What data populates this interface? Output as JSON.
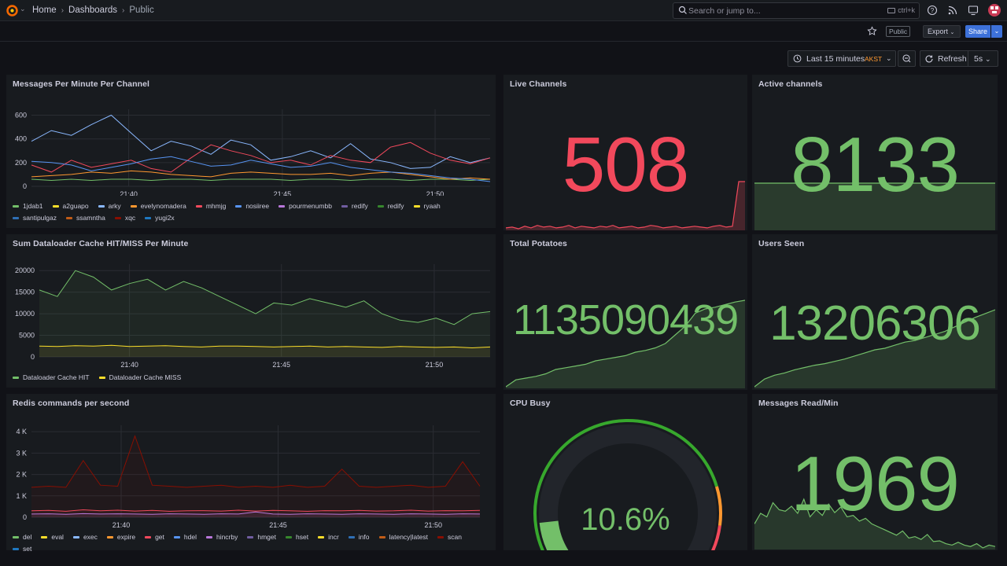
{
  "topbar": {
    "breadcrumbs": [
      "Home",
      "Dashboards",
      "Public"
    ],
    "search_placeholder": "Search or jump to...",
    "search_shortcut": "ctrl+k"
  },
  "toolbar": {
    "public_label": "Public",
    "export_label": "Export",
    "share_label": "Share",
    "time_range": "Last 15 minutes",
    "timezone": "AKST",
    "refresh_label": "Refresh",
    "refresh_interval": "5s"
  },
  "colors": {
    "green": "#73bf69",
    "red": "#f2495c",
    "yellow": "#fade2a",
    "orange": "#ff9830",
    "blue": "#5794f2",
    "panel_bg": "#181b1f"
  },
  "panels": {
    "messages_per_minute": {
      "title": "Messages Per Minute Per Channel",
      "legend": [
        {
          "name": "1jdab1",
          "color": "#73bf69"
        },
        {
          "name": "a2guapo",
          "color": "#fade2a"
        },
        {
          "name": "arky",
          "color": "#8ab8ff"
        },
        {
          "name": "evelynomadera",
          "color": "#ff9830"
        },
        {
          "name": "mhmjg",
          "color": "#f2495c"
        },
        {
          "name": "nosiiree",
          "color": "#5794f2"
        },
        {
          "name": "pourmenumbb",
          "color": "#b877d9"
        },
        {
          "name": "redify",
          "color": "#705da0"
        },
        {
          "name": "redify",
          "color": "#37872d"
        },
        {
          "name": "ryaah",
          "color": "#fade2a"
        },
        {
          "name": "santipulgaz",
          "color": "#2f6fb5"
        },
        {
          "name": "ssamntha",
          "color": "#c15c17"
        },
        {
          "name": "xqc",
          "color": "#890f02"
        },
        {
          "name": "yugi2x",
          "color": "#1f78c1"
        }
      ]
    },
    "dataloader": {
      "title": "Sum Dataloader Cache HIT/MISS Per Minute",
      "legend": [
        {
          "name": "Dataloader Cache HIT",
          "color": "#73bf69"
        },
        {
          "name": "Dataloader Cache MISS",
          "color": "#fade2a"
        }
      ]
    },
    "redis": {
      "title": "Redis commands per second",
      "legend": [
        {
          "name": "del",
          "color": "#73bf69"
        },
        {
          "name": "eval",
          "color": "#fade2a"
        },
        {
          "name": "exec",
          "color": "#8ab8ff"
        },
        {
          "name": "expire",
          "color": "#ff9830"
        },
        {
          "name": "get",
          "color": "#f2495c"
        },
        {
          "name": "hdel",
          "color": "#5794f2"
        },
        {
          "name": "hincrby",
          "color": "#b877d9"
        },
        {
          "name": "hmget",
          "color": "#705da0"
        },
        {
          "name": "hset",
          "color": "#37872d"
        },
        {
          "name": "incr",
          "color": "#fade2a"
        },
        {
          "name": "info",
          "color": "#2f6fb5"
        },
        {
          "name": "latency|latest",
          "color": "#c15c17"
        },
        {
          "name": "scan",
          "color": "#890f02"
        },
        {
          "name": "set",
          "color": "#1f78c1"
        }
      ]
    },
    "live_channels": {
      "title": "Live Channels",
      "value": "508"
    },
    "active_channels": {
      "title": "Active channels",
      "value": "8133"
    },
    "total_potatoes": {
      "title": "Total Potatoes",
      "value": "1135090439"
    },
    "users_seen": {
      "title": "Users Seen",
      "value": "13206306"
    },
    "cpu_busy": {
      "title": "CPU Busy",
      "value": "10.6%",
      "percent": 10.6
    },
    "messages_read": {
      "title": "Messages Read/Min",
      "value": "1969"
    }
  },
  "chart_data": [
    {
      "type": "line",
      "title": "Messages Per Minute Per Channel",
      "x_ticks": [
        "21:40",
        "21:45",
        "21:50"
      ],
      "y_ticks": [
        "0",
        "200",
        "400",
        "600"
      ],
      "ylim": [
        0,
        650
      ],
      "series": [
        {
          "name": "1jdab1",
          "values": [
            60,
            50,
            60,
            50,
            60,
            60,
            50,
            60,
            60,
            50,
            60,
            60,
            60,
            50,
            60,
            60,
            50,
            60,
            60,
            50,
            60,
            60,
            50,
            60
          ]
        },
        {
          "name": "arky",
          "values": [
            380,
            470,
            430,
            520,
            600,
            450,
            300,
            380,
            340,
            270,
            390,
            350,
            220,
            250,
            300,
            240,
            360,
            230,
            200,
            150,
            160,
            250,
            200,
            240
          ]
        },
        {
          "name": "mhmjg",
          "values": [
            180,
            120,
            220,
            160,
            190,
            220,
            150,
            120,
            240,
            350,
            300,
            260,
            200,
            220,
            180,
            260,
            220,
            200,
            330,
            370,
            280,
            220,
            190,
            240
          ]
        },
        {
          "name": "evelynomadera",
          "values": [
            80,
            90,
            100,
            120,
            110,
            130,
            120,
            100,
            90,
            80,
            110,
            120,
            110,
            100,
            100,
            110,
            90,
            110,
            120,
            100,
            80,
            60,
            70,
            60
          ]
        },
        {
          "name": "nosiiree",
          "values": [
            210,
            200,
            180,
            130,
            160,
            190,
            230,
            250,
            210,
            170,
            180,
            220,
            190,
            160,
            170,
            200,
            160,
            140,
            120,
            110,
            90,
            70,
            60,
            40
          ]
        }
      ]
    },
    {
      "type": "area",
      "title": "Sum Dataloader Cache HIT/MISS Per Minute",
      "x_ticks": [
        "21:40",
        "21:45",
        "21:50"
      ],
      "y_ticks": [
        "0",
        "5000",
        "10000",
        "15000",
        "20000"
      ],
      "ylim": [
        0,
        21500
      ],
      "series": [
        {
          "name": "Dataloader Cache HIT",
          "values": [
            15500,
            14000,
            20000,
            18500,
            15500,
            17000,
            18000,
            15500,
            17500,
            16000,
            14000,
            12000,
            10000,
            12500,
            12000,
            13500,
            12500,
            11500,
            13000,
            10000,
            8500,
            8000,
            9000,
            7500,
            10000,
            10500
          ]
        },
        {
          "name": "Dataloader Cache MISS",
          "values": [
            2500,
            2400,
            2600,
            2500,
            2700,
            2400,
            2500,
            2600,
            2400,
            2300,
            2500,
            2500,
            2400,
            2300,
            2400,
            2500,
            2300,
            2400,
            2300,
            2200,
            2400,
            2300,
            2200,
            2300,
            2100,
            2300
          ]
        }
      ]
    },
    {
      "type": "area",
      "title": "Redis commands per second",
      "x_ticks": [
        "21:40",
        "21:45",
        "21:50"
      ],
      "y_ticks": [
        "0",
        "1 K",
        "2 K",
        "3 K",
        "4 K"
      ],
      "ylim": [
        0,
        4300
      ],
      "series": [
        {
          "name": "scan",
          "values": [
            1400,
            1450,
            1400,
            2650,
            1500,
            1450,
            3800,
            1500,
            1450,
            1400,
            1450,
            1500,
            1400,
            1450,
            1400,
            1500,
            1400,
            1450,
            2250,
            1450,
            1400,
            1450,
            1500,
            1400,
            1450,
            2600,
            1450
          ]
        },
        {
          "name": "get",
          "values": [
            300,
            320,
            280,
            350,
            300,
            330,
            290,
            320,
            280,
            300,
            310,
            290,
            330,
            290,
            320,
            300,
            280,
            310,
            300,
            320,
            290,
            300,
            330,
            290,
            310,
            300,
            320
          ]
        },
        {
          "name": "hincrby",
          "values": [
            150,
            160,
            140,
            170,
            150,
            160,
            150,
            140,
            160,
            150,
            140,
            160,
            150,
            250,
            150,
            140,
            160,
            150,
            140,
            160,
            150,
            140,
            160,
            150,
            140,
            160,
            150
          ]
        }
      ]
    },
    {
      "type": "area",
      "title": "Live Channels",
      "values": [
        50,
        60,
        40,
        70,
        50,
        80,
        60,
        70,
        50,
        60,
        80,
        50,
        70,
        60,
        50,
        70,
        60,
        80,
        50,
        60,
        70,
        50,
        60,
        80,
        70,
        50,
        60,
        70,
        50,
        60,
        70,
        60,
        50,
        70,
        80,
        60,
        70,
        600,
        600
      ]
    },
    {
      "type": "area",
      "title": "Active channels",
      "values": [
        8133,
        8133,
        8133,
        8133,
        8133,
        8133
      ]
    },
    {
      "type": "area",
      "title": "Total Potatoes",
      "values": [
        0,
        8,
        10,
        12,
        15,
        20,
        22,
        24,
        26,
        30,
        32,
        34,
        36,
        40,
        42,
        45,
        50,
        60,
        70,
        85,
        90,
        92,
        95,
        98,
        100
      ]
    },
    {
      "type": "area",
      "title": "Users Seen",
      "values": [
        0,
        10,
        15,
        18,
        22,
        25,
        28,
        30,
        33,
        36,
        40,
        44,
        48,
        50,
        54,
        58,
        60,
        64,
        68,
        72,
        78,
        84,
        90,
        95,
        100
      ]
    },
    {
      "type": "area",
      "title": "Messages Read/Min",
      "values": [
        40,
        55,
        50,
        70,
        60,
        58,
        65,
        55,
        75,
        50,
        60,
        52,
        68,
        56,
        64,
        50,
        52,
        44,
        48,
        40,
        36,
        32,
        28,
        24,
        30,
        20,
        22,
        18,
        25,
        15,
        16,
        12,
        10,
        14,
        10,
        8,
        12,
        6,
        10,
        8
      ]
    }
  ]
}
